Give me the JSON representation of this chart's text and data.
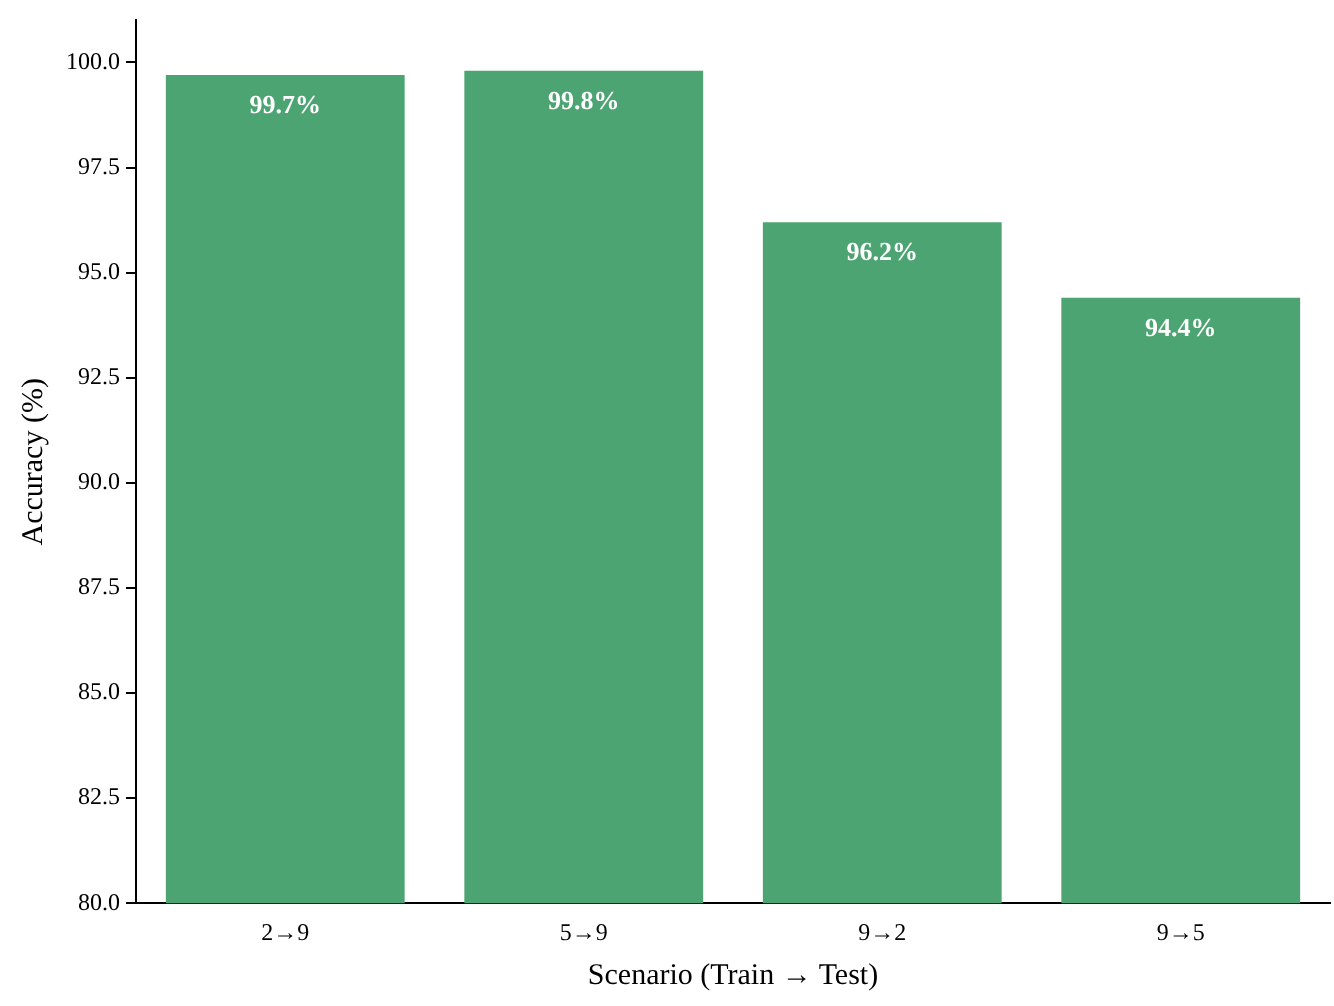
{
  "chart_data": {
    "type": "bar",
    "xlabel": "Scenario (Train → Test)",
    "ylabel": "Accuracy (%)",
    "categories": [
      "2→9",
      "5→9",
      "9→2",
      "9→5"
    ],
    "values": [
      99.7,
      99.8,
      96.2,
      94.4
    ],
    "value_labels": [
      "99.7%",
      "99.8%",
      "96.2%",
      "94.4%"
    ],
    "color": "#4ca472",
    "ylim": [
      80,
      101
    ],
    "yticks": [
      {
        "value": 80,
        "label": "80.0"
      },
      {
        "value": 82.5,
        "label": "82.5"
      },
      {
        "value": 85,
        "label": "85.0"
      },
      {
        "value": 87.5,
        "label": "87.5"
      },
      {
        "value": 90,
        "label": "90.0"
      },
      {
        "value": 92.5,
        "label": "92.5"
      },
      {
        "value": 95,
        "label": "95.0"
      },
      {
        "value": 97.5,
        "label": "97.5"
      },
      {
        "value": 100,
        "label": "100.0"
      }
    ],
    "grid": false,
    "legend": false
  }
}
